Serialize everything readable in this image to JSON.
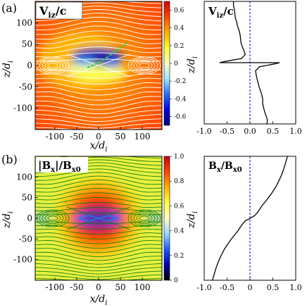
{
  "chart_data": [
    {
      "panel_label": "(a)",
      "type": "heatmap",
      "title": "V_iz/c",
      "title_main": "V",
      "title_sub": "iz",
      "title_tail": "/c",
      "xlabel": "x/d_i",
      "xlabel_var": "x/d",
      "xlabel_sub": "i",
      "ylabel": "z/d_i",
      "ylabel_var": "z/d",
      "ylabel_sub": "i",
      "xlim": [
        -145,
        145
      ],
      "ylim": [
        -150,
        150
      ],
      "x_ticks": [
        -100,
        -50,
        0,
        50,
        100
      ],
      "y_ticks": [
        100,
        50,
        0,
        -50,
        -100
      ],
      "colorbar": {
        "range": [
          -0.7,
          0.7
        ],
        "ticks": [
          0.6,
          0.4,
          0.2,
          0,
          -0.2,
          -0.4,
          -0.6
        ],
        "tick_labels": [
          "0.6",
          "0.4",
          "0.2",
          "0",
          "-0.2",
          "-0.4",
          "-0.6"
        ],
        "colors": [
          "#000078",
          "#0000e0",
          "#2a6cff",
          "#9fe6ff",
          "#ffffc0",
          "#ffff30",
          "#ffb000",
          "#ff4500",
          "#dc0000"
        ]
      },
      "field_line_color": "#ffffff",
      "trajectory_color": "#2ad24a",
      "structure": {
        "x_points": [
          0
        ],
        "o_points": [
          -107,
          107
        ],
        "features": [
          "blue negative lobe above z=0 near x=0",
          "yellow-white positive lobe below z=0 near x=0",
          "red-orange background"
        ]
      }
    },
    {
      "panel_label": "",
      "type": "line",
      "title": "V_iz/c",
      "title_main": "V",
      "title_sub": "iz",
      "title_tail": "/c",
      "ylabel": "z/d_i",
      "ylabel_var": "z/d",
      "ylabel_sub": "i",
      "xlim": [
        -1.0,
        1.0
      ],
      "ylim": [
        -150,
        150
      ],
      "x_ticks": [
        -1.0,
        -0.5,
        0.0,
        0.5,
        1.0
      ],
      "x_tick_labels": [
        "-1.0",
        "-0.5",
        "0.0",
        "0.5",
        "1.0"
      ],
      "reference_line": {
        "x": 0,
        "color": "#0000cc",
        "style": "dashed"
      },
      "series": [
        {
          "color": "#000000",
          "points": [
            [
              -0.36,
              150
            ],
            [
              -0.37,
              140
            ],
            [
              -0.35,
              130
            ],
            [
              -0.33,
              120
            ],
            [
              -0.31,
              110
            ],
            [
              -0.28,
              100
            ],
            [
              -0.27,
              90
            ],
            [
              -0.25,
              80
            ],
            [
              -0.23,
              70
            ],
            [
              -0.21,
              60
            ],
            [
              -0.19,
              50
            ],
            [
              -0.16,
              40
            ],
            [
              -0.13,
              30
            ],
            [
              -0.11,
              20
            ],
            [
              -0.2,
              10
            ],
            [
              -0.55,
              3
            ],
            [
              -0.66,
              0
            ],
            [
              0.66,
              0
            ],
            [
              0.55,
              -3
            ],
            [
              0.2,
              -10
            ],
            [
              0.11,
              -20
            ],
            [
              0.13,
              -30
            ],
            [
              0.16,
              -40
            ],
            [
              0.19,
              -50
            ],
            [
              0.21,
              -60
            ],
            [
              0.23,
              -70
            ],
            [
              0.25,
              -80
            ],
            [
              0.27,
              -90
            ],
            [
              0.28,
              -100
            ],
            [
              0.31,
              -110
            ],
            [
              0.33,
              -120
            ],
            [
              0.35,
              -130
            ],
            [
              0.37,
              -140
            ],
            [
              0.36,
              -150
            ]
          ]
        }
      ]
    },
    {
      "panel_label": "(b)",
      "type": "heatmap",
      "title": "|B_x|/B_x0",
      "title_bar_open": "|B",
      "title_sub1": "x",
      "title_mid": "|/B",
      "title_sub2": "x0",
      "xlabel": "x/d_i",
      "xlabel_var": "x/d",
      "xlabel_sub": "i",
      "ylabel": "z/d_i",
      "ylabel_var": "z/d",
      "ylabel_sub": "i",
      "xlim": [
        -145,
        145
      ],
      "ylim": [
        -150,
        150
      ],
      "x_ticks": [
        -100,
        -50,
        0,
        50,
        100
      ],
      "y_ticks": [
        100,
        50,
        0,
        -50,
        -100
      ],
      "colorbar": {
        "range": [
          0,
          1.0
        ],
        "ticks": [
          1.0,
          0.8,
          0.6,
          0.4,
          0.2,
          0
        ],
        "tick_labels": [
          "1.0",
          "0.8",
          "0.6",
          "0.4",
          "0.2",
          "0"
        ],
        "colors": [
          "#000000",
          "#0000b0",
          "#1e5cff",
          "#9ad8ff",
          "#ffffc0",
          "#ffff40",
          "#ffb000",
          "#ff4500",
          "#cc0000"
        ]
      },
      "field_line_color": "#0a7a0a",
      "trajectory_color": "#1e7bff",
      "structure": {
        "x_points": [
          0
        ],
        "o_points": [
          -107,
          107
        ],
        "features": [
          "yellow-green background",
          "orange-red bubble around x-point",
          "dark blue core along z=0"
        ]
      }
    },
    {
      "panel_label": "",
      "type": "line",
      "title": "B_x/B_x0",
      "title_main": "B",
      "title_sub1": "x",
      "title_mid": "/B",
      "title_sub2": "x0",
      "ylabel": "z/d_i",
      "ylabel_var": "z/d",
      "ylabel_sub": "i",
      "xlim": [
        -1.0,
        1.0
      ],
      "ylim": [
        -150,
        150
      ],
      "x_ticks": [
        -1.0,
        -0.5,
        0.0,
        0.5,
        1.0
      ],
      "x_tick_labels": [
        "-1.0",
        "-0.5",
        "0",
        "0.5",
        "1.0"
      ],
      "reference_line": {
        "x": 0,
        "color": "#0000cc",
        "style": "dashed"
      },
      "series": [
        {
          "color": "#000000",
          "points": [
            [
              0.82,
              150
            ],
            [
              0.78,
              135
            ],
            [
              0.74,
              120
            ],
            [
              0.69,
              105
            ],
            [
              0.63,
              90
            ],
            [
              0.56,
              75
            ],
            [
              0.47,
              60
            ],
            [
              0.37,
              45
            ],
            [
              0.26,
              30
            ],
            [
              0.17,
              15
            ],
            [
              0.1,
              6
            ],
            [
              0.03,
              2
            ],
            [
              -0.03,
              -2
            ],
            [
              -0.1,
              -6
            ],
            [
              -0.17,
              -15
            ],
            [
              -0.26,
              -30
            ],
            [
              -0.37,
              -45
            ],
            [
              -0.47,
              -60
            ],
            [
              -0.56,
              -75
            ],
            [
              -0.63,
              -90
            ],
            [
              -0.69,
              -105
            ],
            [
              -0.74,
              -120
            ],
            [
              -0.78,
              -135
            ],
            [
              -0.82,
              -150
            ]
          ]
        }
      ]
    }
  ]
}
